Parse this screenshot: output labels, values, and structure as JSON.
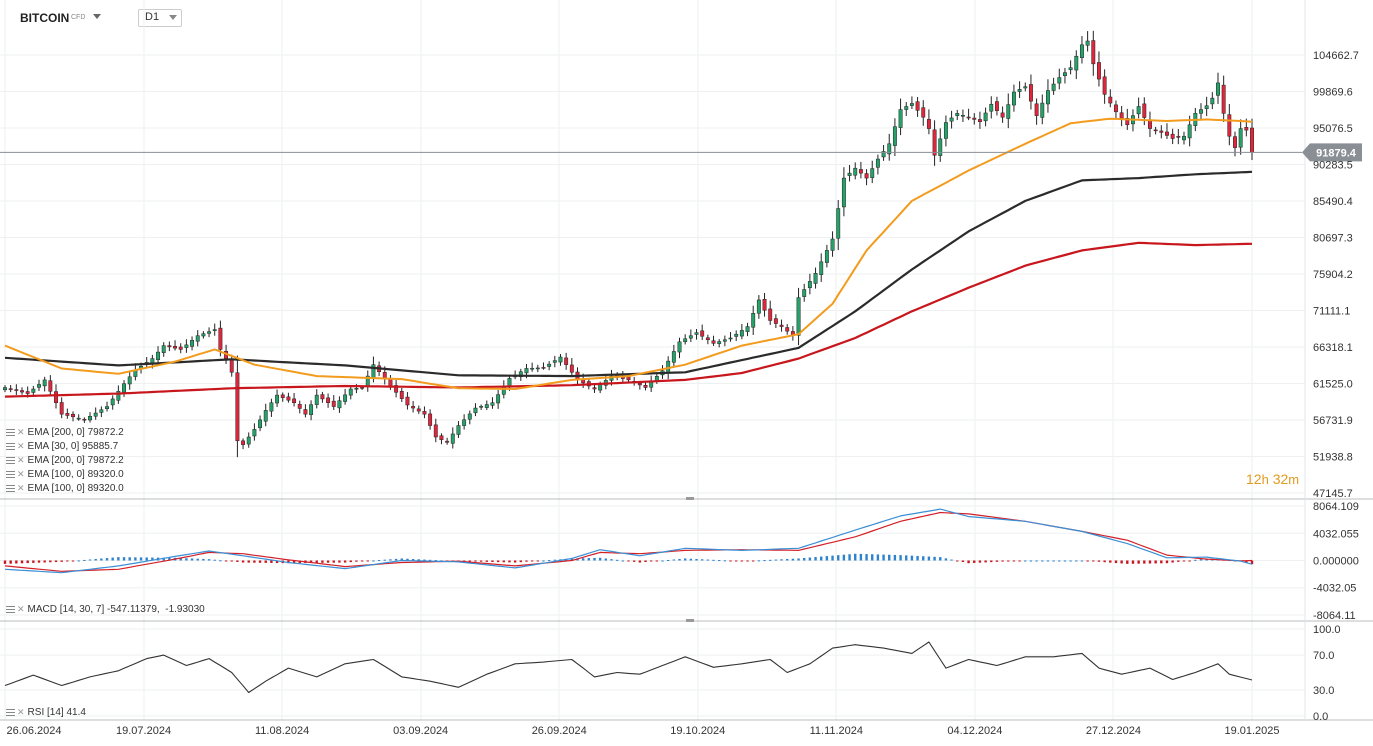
{
  "header": {
    "symbol": "BITCOIN",
    "symbol_sub": "CFD",
    "timeframe": "D1"
  },
  "countdown": {
    "hours": "12",
    "h_unit": "h",
    "minutes": "32",
    "m_unit": "m"
  },
  "colors": {
    "up": "#26a269",
    "down": "#e0263c",
    "ema30": "#f29b1d",
    "ema100": "#2b2b2b",
    "ema200": "#c8161d",
    "macd_line": "#3a8fd6",
    "signal_line": "#d32027",
    "hist_pos": "#2f82cc",
    "hist_neg": "#c8161d",
    "rsi": "#333333",
    "current_price": "#8a8f96"
  },
  "legends": {
    "main": [
      {
        "name": "EMA",
        "params": "[200, 0]",
        "value": "79872.2"
      },
      {
        "name": "EMA",
        "params": "[30, 0]",
        "value": "95885.7"
      },
      {
        "name": "EMA",
        "params": "[200, 0]",
        "value": "79872.2"
      },
      {
        "name": "EMA",
        "params": "[100, 0]",
        "value": "89320.0"
      },
      {
        "name": "EMA",
        "params": "[100, 0]",
        "value": "89320.0"
      }
    ],
    "macd": {
      "name": "MACD",
      "params": "[14, 30, 7]",
      "value1": "-547.11379",
      "value2": "-1.93030"
    },
    "rsi": {
      "name": "RSI",
      "params": "[14]",
      "value": "41.4"
    }
  },
  "chart_data": [
    {
      "type": "candlestick",
      "current_price": 91879.4,
      "y_ticks": [
        "104662.7",
        "99869.6",
        "95076.5",
        "90283.5",
        "85490.4",
        "80697.3",
        "75904.2",
        "71111.1",
        "66318.1",
        "61525.0",
        "56731.9",
        "51938.8",
        "47145.7"
      ],
      "x_ticks": [
        "26.06.2024",
        "19.07.2024",
        "11.08.2024",
        "03.09.2024",
        "26.09.2024",
        "19.10.2024",
        "11.11.2024",
        "04.12.2024",
        "27.12.2024",
        "19.01.2025"
      ],
      "close_anchors": [
        [
          0,
          61000
        ],
        [
          4,
          60200
        ],
        [
          7,
          62000
        ],
        [
          10,
          57500
        ],
        [
          14,
          56800
        ],
        [
          18,
          58500
        ],
        [
          21,
          61500
        ],
        [
          23,
          63300
        ],
        [
          26,
          64800
        ],
        [
          28,
          66500
        ],
        [
          31,
          66000
        ],
        [
          34,
          67800
        ],
        [
          37,
          68600
        ],
        [
          38,
          66000
        ],
        [
          39,
          64800
        ],
        [
          40,
          63000
        ],
        [
          41,
          54000
        ],
        [
          42,
          53500
        ],
        [
          44,
          55500
        ],
        [
          46,
          58000
        ],
        [
          48,
          60000
        ],
        [
          51,
          59000
        ],
        [
          53,
          57500
        ],
        [
          55,
          60000
        ],
        [
          58,
          58500
        ],
        [
          61,
          60800
        ],
        [
          63,
          61000
        ],
        [
          65,
          64000
        ],
        [
          68,
          61200
        ],
        [
          71,
          58700
        ],
        [
          74,
          57500
        ],
        [
          76,
          54500
        ],
        [
          78,
          53800
        ],
        [
          80,
          56000
        ],
        [
          83,
          58300
        ],
        [
          86,
          59000
        ],
        [
          89,
          62200
        ],
        [
          92,
          63500
        ],
        [
          95,
          63600
        ],
        [
          98,
          65000
        ],
        [
          101,
          62000
        ],
        [
          104,
          60800
        ],
        [
          107,
          62500
        ],
        [
          110,
          62000
        ],
        [
          113,
          61000
        ],
        [
          116,
          63200
        ],
        [
          119,
          67000
        ],
        [
          122,
          68200
        ],
        [
          125,
          66800
        ],
        [
          128,
          67500
        ],
        [
          131,
          69000
        ],
        [
          133,
          72500
        ],
        [
          135,
          69800
        ],
        [
          137,
          69000
        ],
        [
          139,
          67800
        ],
        [
          140,
          72800
        ],
        [
          143,
          76000
        ],
        [
          146,
          80500
        ],
        [
          148,
          88500
        ],
        [
          150,
          89800
        ],
        [
          152,
          88500
        ],
        [
          154,
          91000
        ],
        [
          156,
          93000
        ],
        [
          158,
          97500
        ],
        [
          160,
          98300
        ],
        [
          162,
          96500
        ],
        [
          163,
          95000
        ],
        [
          164,
          91500
        ],
        [
          166,
          95800
        ],
        [
          168,
          97000
        ],
        [
          170,
          96500
        ],
        [
          172,
          95900
        ],
        [
          174,
          98200
        ],
        [
          176,
          96500
        ],
        [
          178,
          99800
        ],
        [
          180,
          100500
        ],
        [
          182,
          96700
        ],
        [
          184,
          100000
        ],
        [
          186,
          101700
        ],
        [
          188,
          103000
        ],
        [
          190,
          106000
        ],
        [
          191,
          106500
        ],
        [
          192,
          103500
        ],
        [
          194,
          99500
        ],
        [
          196,
          97200
        ],
        [
          198,
          95500
        ],
        [
          200,
          97900
        ],
        [
          202,
          95000
        ],
        [
          204,
          94500
        ],
        [
          206,
          93700
        ],
        [
          208,
          94000
        ],
        [
          210,
          97000
        ],
        [
          212,
          98000
        ],
        [
          213,
          99000
        ],
        [
          214,
          101000
        ],
        [
          215,
          97000
        ],
        [
          216,
          94000
        ],
        [
          217,
          92500
        ],
        [
          218,
          95000
        ],
        [
          219,
          94800
        ],
        [
          220,
          91879
        ]
      ],
      "ema30_anchors": [
        [
          0,
          66500
        ],
        [
          10,
          63500
        ],
        [
          20,
          62800
        ],
        [
          30,
          64400
        ],
        [
          37,
          66000
        ],
        [
          44,
          64000
        ],
        [
          55,
          62500
        ],
        [
          70,
          62100
        ],
        [
          80,
          60900
        ],
        [
          90,
          60800
        ],
        [
          100,
          62000
        ],
        [
          110,
          62500
        ],
        [
          120,
          64000
        ],
        [
          130,
          66500
        ],
        [
          140,
          68000
        ],
        [
          146,
          72000
        ],
        [
          152,
          79000
        ],
        [
          160,
          85500
        ],
        [
          170,
          89500
        ],
        [
          180,
          93000
        ],
        [
          188,
          95700
        ],
        [
          195,
          96300
        ],
        [
          205,
          96000
        ],
        [
          212,
          96200
        ],
        [
          218,
          96000
        ],
        [
          220,
          95885
        ]
      ],
      "ema100_anchors": [
        [
          0,
          64900
        ],
        [
          20,
          63900
        ],
        [
          40,
          64700
        ],
        [
          60,
          63900
        ],
        [
          80,
          62600
        ],
        [
          100,
          62500
        ],
        [
          120,
          63000
        ],
        [
          140,
          66200
        ],
        [
          150,
          71000
        ],
        [
          160,
          76500
        ],
        [
          170,
          81500
        ],
        [
          180,
          85500
        ],
        [
          190,
          88200
        ],
        [
          200,
          88500
        ],
        [
          210,
          89000
        ],
        [
          220,
          89320
        ]
      ],
      "ema200_anchors": [
        [
          0,
          59800
        ],
        [
          20,
          60200
        ],
        [
          40,
          60900
        ],
        [
          60,
          61200
        ],
        [
          80,
          61000
        ],
        [
          100,
          61300
        ],
        [
          120,
          62000
        ],
        [
          130,
          62900
        ],
        [
          140,
          64800
        ],
        [
          150,
          67500
        ],
        [
          160,
          71000
        ],
        [
          170,
          74100
        ],
        [
          180,
          77000
        ],
        [
          190,
          79000
        ],
        [
          200,
          80000
        ],
        [
          210,
          79700
        ],
        [
          220,
          79872
        ]
      ]
    },
    {
      "type": "macd",
      "y_ticks": [
        "8064.109",
        "4032.055",
        "0.000000",
        "-4032.05",
        "-8064.11"
      ],
      "macd_anchors": [
        [
          0,
          -1300
        ],
        [
          10,
          -1800
        ],
        [
          20,
          -800
        ],
        [
          30,
          600
        ],
        [
          36,
          1400
        ],
        [
          42,
          700
        ],
        [
          50,
          -300
        ],
        [
          60,
          -1200
        ],
        [
          70,
          0
        ],
        [
          80,
          -200
        ],
        [
          90,
          -1100
        ],
        [
          100,
          300
        ],
        [
          105,
          1600
        ],
        [
          112,
          700
        ],
        [
          120,
          1800
        ],
        [
          130,
          1500
        ],
        [
          140,
          1800
        ],
        [
          150,
          4500
        ],
        [
          158,
          6600
        ],
        [
          165,
          7600
        ],
        [
          170,
          6500
        ],
        [
          180,
          5800
        ],
        [
          190,
          4300
        ],
        [
          198,
          2500
        ],
        [
          205,
          400
        ],
        [
          212,
          500
        ],
        [
          218,
          -100
        ],
        [
          220,
          -547
        ]
      ],
      "signal_anchors": [
        [
          0,
          -800
        ],
        [
          10,
          -1600
        ],
        [
          20,
          -1300
        ],
        [
          30,
          200
        ],
        [
          36,
          1200
        ],
        [
          42,
          1000
        ],
        [
          50,
          100
        ],
        [
          60,
          -900
        ],
        [
          70,
          -300
        ],
        [
          80,
          -100
        ],
        [
          90,
          -800
        ],
        [
          100,
          0
        ],
        [
          105,
          1200
        ],
        [
          112,
          1000
        ],
        [
          120,
          1500
        ],
        [
          130,
          1600
        ],
        [
          140,
          1500
        ],
        [
          150,
          3500
        ],
        [
          158,
          5800
        ],
        [
          165,
          7100
        ],
        [
          170,
          6900
        ],
        [
          180,
          5800
        ],
        [
          190,
          4300
        ],
        [
          198,
          3000
        ],
        [
          205,
          800
        ],
        [
          212,
          200
        ],
        [
          218,
          -50
        ],
        [
          220,
          -2
        ]
      ]
    },
    {
      "type": "rsi",
      "y_ticks": [
        "100.0",
        "70.0",
        "30.0",
        "0.0"
      ],
      "rsi_anchors": [
        [
          0,
          35
        ],
        [
          5,
          47
        ],
        [
          10,
          35
        ],
        [
          15,
          45
        ],
        [
          20,
          52
        ],
        [
          25,
          66
        ],
        [
          28,
          70
        ],
        [
          32,
          58
        ],
        [
          36,
          66
        ],
        [
          40,
          50
        ],
        [
          43,
          27
        ],
        [
          46,
          40
        ],
        [
          50,
          55
        ],
        [
          55,
          45
        ],
        [
          60,
          60
        ],
        [
          65,
          65
        ],
        [
          70,
          45
        ],
        [
          75,
          40
        ],
        [
          80,
          33
        ],
        [
          85,
          48
        ],
        [
          90,
          60
        ],
        [
          95,
          62
        ],
        [
          100,
          65
        ],
        [
          104,
          45
        ],
        [
          108,
          50
        ],
        [
          112,
          48
        ],
        [
          116,
          58
        ],
        [
          120,
          68
        ],
        [
          125,
          56
        ],
        [
          130,
          60
        ],
        [
          135,
          65
        ],
        [
          138,
          50
        ],
        [
          142,
          60
        ],
        [
          146,
          78
        ],
        [
          150,
          82
        ],
        [
          155,
          78
        ],
        [
          160,
          72
        ],
        [
          163,
          85
        ],
        [
          166,
          55
        ],
        [
          170,
          65
        ],
        [
          175,
          58
        ],
        [
          180,
          68
        ],
        [
          185,
          68
        ],
        [
          190,
          72
        ],
        [
          193,
          55
        ],
        [
          197,
          48
        ],
        [
          202,
          55
        ],
        [
          206,
          42
        ],
        [
          210,
          50
        ],
        [
          214,
          60
        ],
        [
          216,
          48
        ],
        [
          220,
          41.4
        ]
      ]
    }
  ]
}
